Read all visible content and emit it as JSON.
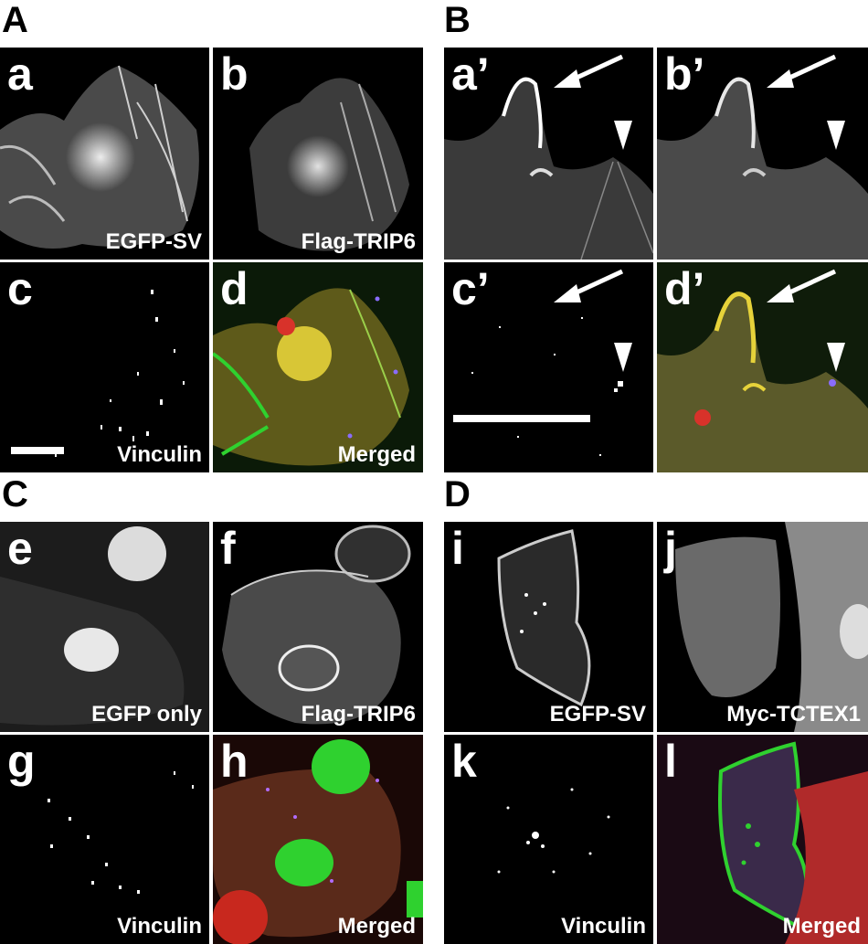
{
  "figure": {
    "sections": [
      {
        "id": "A",
        "label": "A"
      },
      {
        "id": "B",
        "label": "B"
      },
      {
        "id": "C",
        "label": "C"
      },
      {
        "id": "D",
        "label": "D"
      }
    ],
    "panels": {
      "a": {
        "letter": "a",
        "caption": "EGFP-SV",
        "style": "gray"
      },
      "b": {
        "letter": "b",
        "caption": "Flag-TRIP6",
        "style": "gray"
      },
      "c": {
        "letter": "c",
        "caption": "Vinculin",
        "style": "dots"
      },
      "d": {
        "letter": "d",
        "caption": "Merged",
        "style": "merged-green"
      },
      "a2": {
        "letter": "a’",
        "caption": "",
        "style": "gray"
      },
      "b2": {
        "letter": "b’",
        "caption": "",
        "style": "gray"
      },
      "c2": {
        "letter": "c’",
        "caption": "",
        "style": "dots"
      },
      "d2": {
        "letter": "d’",
        "caption": "",
        "style": "merged-green"
      },
      "e": {
        "letter": "e",
        "caption": "EGFP only",
        "style": "gray"
      },
      "f": {
        "letter": "f",
        "caption": "Flag-TRIP6",
        "style": "gray"
      },
      "g": {
        "letter": "g",
        "caption": "Vinculin",
        "style": "dots"
      },
      "h": {
        "letter": "h",
        "caption": "Merged",
        "style": "merged-red"
      },
      "i": {
        "letter": "i",
        "caption": "EGFP-SV",
        "style": "gray"
      },
      "j": {
        "letter": "j",
        "caption": "Myc-TCTEX1",
        "style": "gray"
      },
      "k": {
        "letter": "k",
        "caption": "Vinculin",
        "style": "dots"
      },
      "l": {
        "letter": "l",
        "caption": "Merged",
        "style": "merged-red"
      }
    },
    "colors": {
      "background": "#000000",
      "text": "#ffffff",
      "egfp_green": "#2fd12f",
      "flag_red": "#d8322a",
      "overlap_yellow": "#e6d23a",
      "vinculin_blue": "#8a6cff"
    }
  }
}
